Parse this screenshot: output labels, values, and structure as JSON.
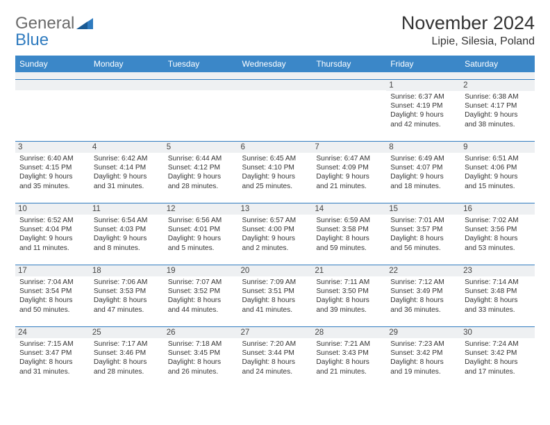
{
  "brand": {
    "part1": "General",
    "part2": "Blue",
    "tri_color": "#2f7bbf"
  },
  "title": "November 2024",
  "location": "Lipie, Silesia, Poland",
  "colors": {
    "header_bg": "#3b87c8",
    "header_text": "#ffffff",
    "daynum_bg": "#eef0f2",
    "border": "#2f7bbf",
    "text": "#333333"
  },
  "day_headers": [
    "Sunday",
    "Monday",
    "Tuesday",
    "Wednesday",
    "Thursday",
    "Friday",
    "Saturday"
  ],
  "weeks": [
    [
      {
        "n": "",
        "sr": "",
        "ss": "",
        "dl": ""
      },
      {
        "n": "",
        "sr": "",
        "ss": "",
        "dl": ""
      },
      {
        "n": "",
        "sr": "",
        "ss": "",
        "dl": ""
      },
      {
        "n": "",
        "sr": "",
        "ss": "",
        "dl": ""
      },
      {
        "n": "",
        "sr": "",
        "ss": "",
        "dl": ""
      },
      {
        "n": "1",
        "sr": "Sunrise: 6:37 AM",
        "ss": "Sunset: 4:19 PM",
        "dl": "Daylight: 9 hours and 42 minutes."
      },
      {
        "n": "2",
        "sr": "Sunrise: 6:38 AM",
        "ss": "Sunset: 4:17 PM",
        "dl": "Daylight: 9 hours and 38 minutes."
      }
    ],
    [
      {
        "n": "3",
        "sr": "Sunrise: 6:40 AM",
        "ss": "Sunset: 4:15 PM",
        "dl": "Daylight: 9 hours and 35 minutes."
      },
      {
        "n": "4",
        "sr": "Sunrise: 6:42 AM",
        "ss": "Sunset: 4:14 PM",
        "dl": "Daylight: 9 hours and 31 minutes."
      },
      {
        "n": "5",
        "sr": "Sunrise: 6:44 AM",
        "ss": "Sunset: 4:12 PM",
        "dl": "Daylight: 9 hours and 28 minutes."
      },
      {
        "n": "6",
        "sr": "Sunrise: 6:45 AM",
        "ss": "Sunset: 4:10 PM",
        "dl": "Daylight: 9 hours and 25 minutes."
      },
      {
        "n": "7",
        "sr": "Sunrise: 6:47 AM",
        "ss": "Sunset: 4:09 PM",
        "dl": "Daylight: 9 hours and 21 minutes."
      },
      {
        "n": "8",
        "sr": "Sunrise: 6:49 AM",
        "ss": "Sunset: 4:07 PM",
        "dl": "Daylight: 9 hours and 18 minutes."
      },
      {
        "n": "9",
        "sr": "Sunrise: 6:51 AM",
        "ss": "Sunset: 4:06 PM",
        "dl": "Daylight: 9 hours and 15 minutes."
      }
    ],
    [
      {
        "n": "10",
        "sr": "Sunrise: 6:52 AM",
        "ss": "Sunset: 4:04 PM",
        "dl": "Daylight: 9 hours and 11 minutes."
      },
      {
        "n": "11",
        "sr": "Sunrise: 6:54 AM",
        "ss": "Sunset: 4:03 PM",
        "dl": "Daylight: 9 hours and 8 minutes."
      },
      {
        "n": "12",
        "sr": "Sunrise: 6:56 AM",
        "ss": "Sunset: 4:01 PM",
        "dl": "Daylight: 9 hours and 5 minutes."
      },
      {
        "n": "13",
        "sr": "Sunrise: 6:57 AM",
        "ss": "Sunset: 4:00 PM",
        "dl": "Daylight: 9 hours and 2 minutes."
      },
      {
        "n": "14",
        "sr": "Sunrise: 6:59 AM",
        "ss": "Sunset: 3:58 PM",
        "dl": "Daylight: 8 hours and 59 minutes."
      },
      {
        "n": "15",
        "sr": "Sunrise: 7:01 AM",
        "ss": "Sunset: 3:57 PM",
        "dl": "Daylight: 8 hours and 56 minutes."
      },
      {
        "n": "16",
        "sr": "Sunrise: 7:02 AM",
        "ss": "Sunset: 3:56 PM",
        "dl": "Daylight: 8 hours and 53 minutes."
      }
    ],
    [
      {
        "n": "17",
        "sr": "Sunrise: 7:04 AM",
        "ss": "Sunset: 3:54 PM",
        "dl": "Daylight: 8 hours and 50 minutes."
      },
      {
        "n": "18",
        "sr": "Sunrise: 7:06 AM",
        "ss": "Sunset: 3:53 PM",
        "dl": "Daylight: 8 hours and 47 minutes."
      },
      {
        "n": "19",
        "sr": "Sunrise: 7:07 AM",
        "ss": "Sunset: 3:52 PM",
        "dl": "Daylight: 8 hours and 44 minutes."
      },
      {
        "n": "20",
        "sr": "Sunrise: 7:09 AM",
        "ss": "Sunset: 3:51 PM",
        "dl": "Daylight: 8 hours and 41 minutes."
      },
      {
        "n": "21",
        "sr": "Sunrise: 7:11 AM",
        "ss": "Sunset: 3:50 PM",
        "dl": "Daylight: 8 hours and 39 minutes."
      },
      {
        "n": "22",
        "sr": "Sunrise: 7:12 AM",
        "ss": "Sunset: 3:49 PM",
        "dl": "Daylight: 8 hours and 36 minutes."
      },
      {
        "n": "23",
        "sr": "Sunrise: 7:14 AM",
        "ss": "Sunset: 3:48 PM",
        "dl": "Daylight: 8 hours and 33 minutes."
      }
    ],
    [
      {
        "n": "24",
        "sr": "Sunrise: 7:15 AM",
        "ss": "Sunset: 3:47 PM",
        "dl": "Daylight: 8 hours and 31 minutes."
      },
      {
        "n": "25",
        "sr": "Sunrise: 7:17 AM",
        "ss": "Sunset: 3:46 PM",
        "dl": "Daylight: 8 hours and 28 minutes."
      },
      {
        "n": "26",
        "sr": "Sunrise: 7:18 AM",
        "ss": "Sunset: 3:45 PM",
        "dl": "Daylight: 8 hours and 26 minutes."
      },
      {
        "n": "27",
        "sr": "Sunrise: 7:20 AM",
        "ss": "Sunset: 3:44 PM",
        "dl": "Daylight: 8 hours and 24 minutes."
      },
      {
        "n": "28",
        "sr": "Sunrise: 7:21 AM",
        "ss": "Sunset: 3:43 PM",
        "dl": "Daylight: 8 hours and 21 minutes."
      },
      {
        "n": "29",
        "sr": "Sunrise: 7:23 AM",
        "ss": "Sunset: 3:42 PM",
        "dl": "Daylight: 8 hours and 19 minutes."
      },
      {
        "n": "30",
        "sr": "Sunrise: 7:24 AM",
        "ss": "Sunset: 3:42 PM",
        "dl": "Daylight: 8 hours and 17 minutes."
      }
    ]
  ]
}
